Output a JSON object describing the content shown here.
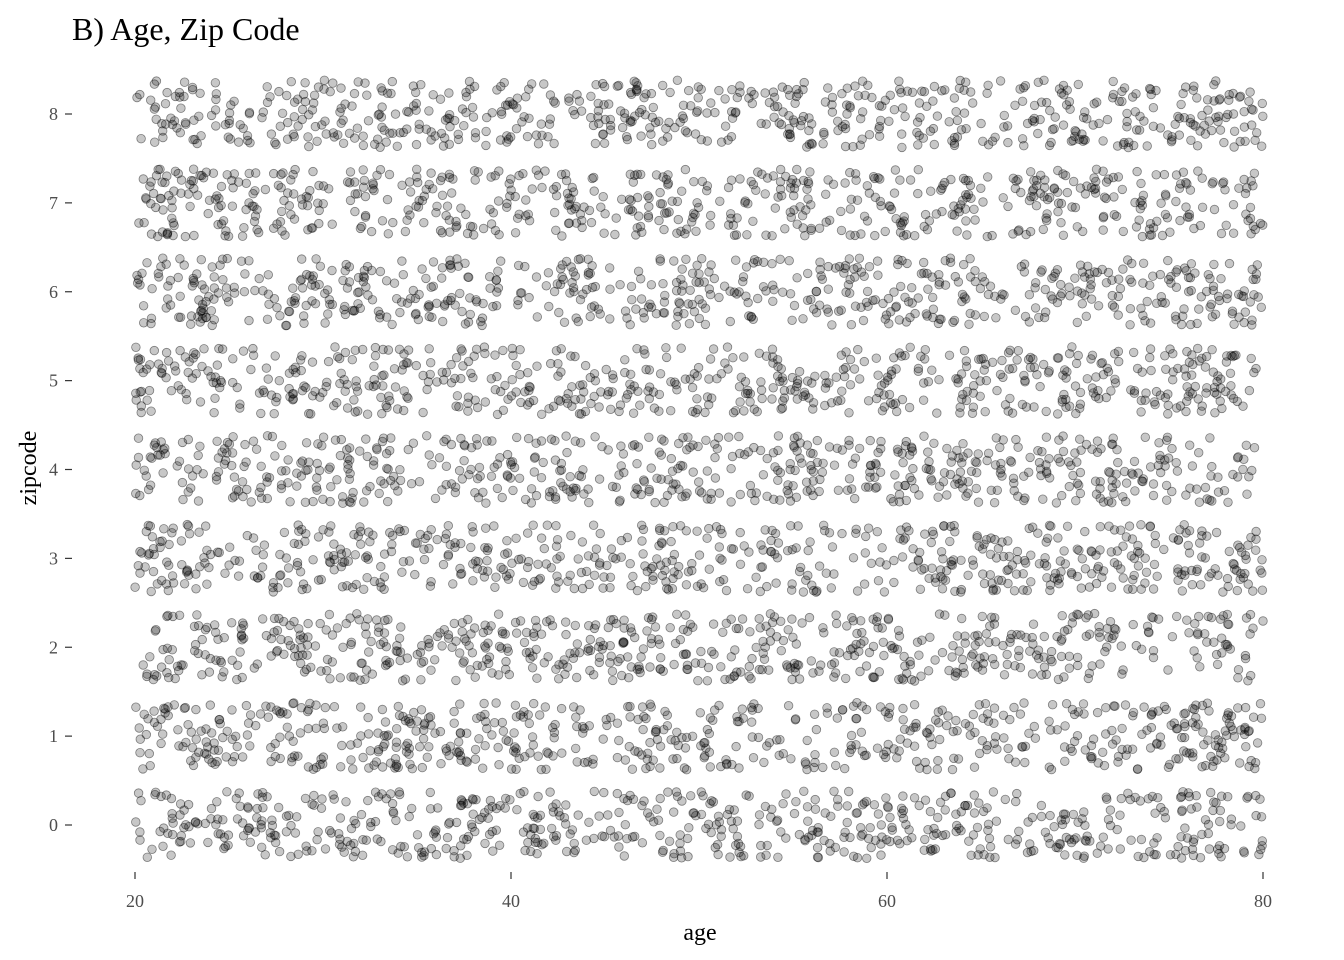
{
  "chart_data": {
    "type": "scatter",
    "title": "B) Age, Zip Code",
    "xlabel": "age",
    "ylabel": "zipcode",
    "xlim": [
      20,
      80
    ],
    "ylim": [
      -0.4,
      8.4
    ],
    "x_ticks": [
      20,
      40,
      60,
      80
    ],
    "y_ticks": [
      0,
      1,
      2,
      3,
      4,
      5,
      6,
      7,
      8
    ],
    "categories_y": [
      0,
      1,
      2,
      3,
      4,
      5,
      6,
      7,
      8
    ],
    "jitter_y": 0.38,
    "points_per_category": 620,
    "point_color": "#000000",
    "point_alpha": 0.22,
    "grid": false,
    "legend": "none"
  }
}
